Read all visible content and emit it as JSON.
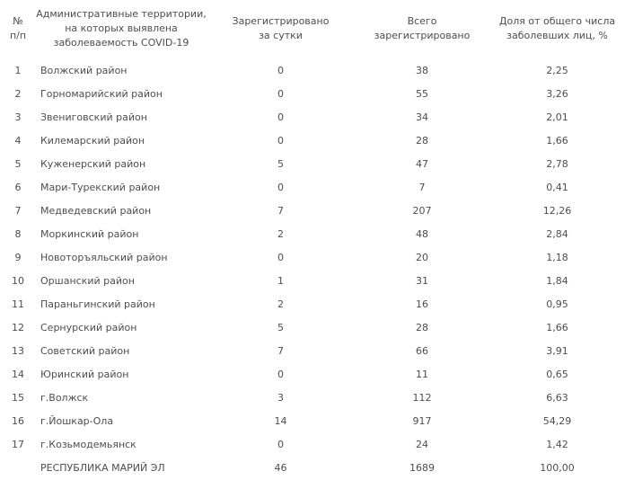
{
  "chart_data": {
    "type": "table",
    "title": "",
    "columns": [
      "№\nп/п",
      "Административные территории,\nна которых выявлена\nзаболеваемость COVID-19",
      "Зарегистрировано\nза сутки",
      "Всего\nзарегистрировано",
      "Доля от общего числа\nзаболевших лиц, %"
    ],
    "rows": [
      {
        "num": "1",
        "territory": "Волжский район",
        "registered_daily": "0",
        "registered_total": "38",
        "share_percent": "2,25"
      },
      {
        "num": "2",
        "territory": "Горномарийский район",
        "registered_daily": "0",
        "registered_total": "55",
        "share_percent": "3,26"
      },
      {
        "num": "3",
        "territory": "Звениговский район",
        "registered_daily": "0",
        "registered_total": "34",
        "share_percent": "2,01"
      },
      {
        "num": "4",
        "territory": "Килемарский район",
        "registered_daily": "0",
        "registered_total": "28",
        "share_percent": "1,66"
      },
      {
        "num": "5",
        "territory": "Куженерский район",
        "registered_daily": "5",
        "registered_total": "47",
        "share_percent": "2,78"
      },
      {
        "num": "6",
        "territory": "Мари-Турекский район",
        "registered_daily": "0",
        "registered_total": "7",
        "share_percent": "0,41"
      },
      {
        "num": "7",
        "territory": "Медведевский район",
        "registered_daily": "7",
        "registered_total": "207",
        "share_percent": "12,26"
      },
      {
        "num": "8",
        "territory": "Моркинский район",
        "registered_daily": "2",
        "registered_total": "48",
        "share_percent": "2,84"
      },
      {
        "num": "9",
        "territory": "Новоторъяльский район",
        "registered_daily": "0",
        "registered_total": "20",
        "share_percent": "1,18"
      },
      {
        "num": "10",
        "territory": "Оршанский район",
        "registered_daily": "1",
        "registered_total": "31",
        "share_percent": "1,84"
      },
      {
        "num": "11",
        "territory": "Параньгинский район",
        "registered_daily": "2",
        "registered_total": "16",
        "share_percent": "0,95"
      },
      {
        "num": "12",
        "territory": "Сернурский район",
        "registered_daily": "5",
        "registered_total": "28",
        "share_percent": "1,66"
      },
      {
        "num": "13",
        "territory": "Советский район",
        "registered_daily": "7",
        "registered_total": "66",
        "share_percent": "3,91"
      },
      {
        "num": "14",
        "territory": "Юринский район",
        "registered_daily": "0",
        "registered_total": "11",
        "share_percent": "0,65"
      },
      {
        "num": "15",
        "territory": "г.Волжск",
        "registered_daily": "3",
        "registered_total": "112",
        "share_percent": "6,63"
      },
      {
        "num": "16",
        "territory": "г.Йошкар-Ола",
        "registered_daily": "14",
        "registered_total": "917",
        "share_percent": "54,29"
      },
      {
        "num": "17",
        "territory": "г.Козьмодемьянск",
        "registered_daily": "0",
        "registered_total": "24",
        "share_percent": "1,42"
      }
    ],
    "total_row": {
      "num": "",
      "territory": "РЕСПУБЛИКА МАРИЙ ЭЛ",
      "registered_daily": "46",
      "registered_total": "1689",
      "share_percent": "100,00"
    }
  },
  "colors": {
    "text": "#4d4d4d",
    "background": "#ffffff"
  }
}
